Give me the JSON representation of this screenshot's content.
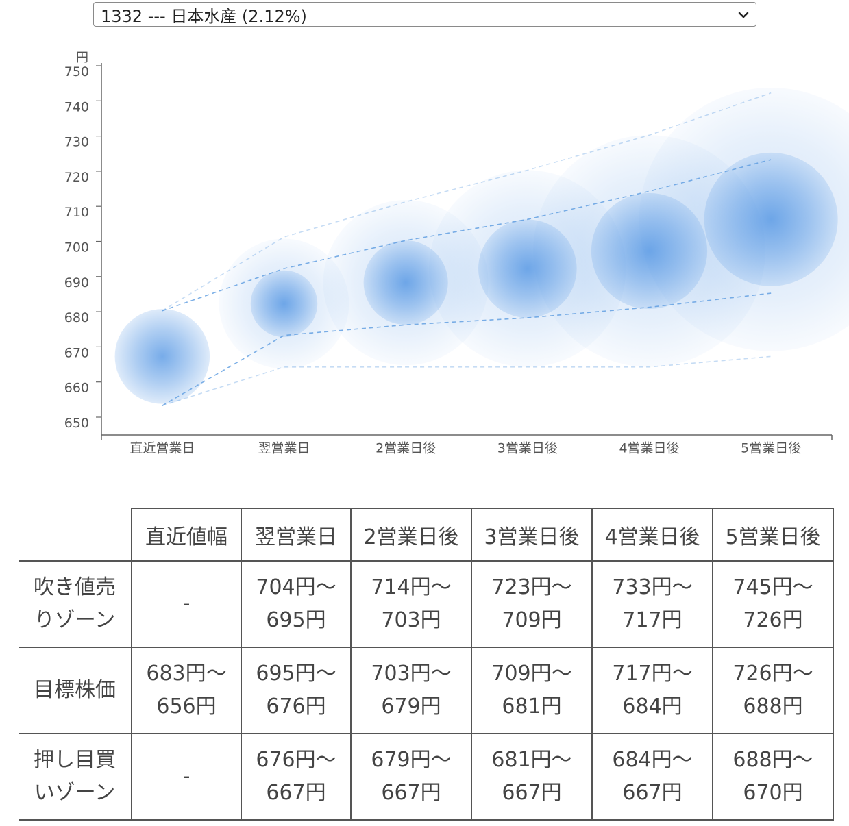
{
  "selector": {
    "selected": "1332 --- 日本水産 (2.12%)"
  },
  "chart_data": {
    "type": "bubble-range",
    "ylabel": "円",
    "ylim": [
      650,
      750
    ],
    "yticks": [
      650,
      660,
      670,
      680,
      690,
      700,
      710,
      720,
      730,
      740,
      750
    ],
    "categories": [
      "直近営業日",
      "翌営業日",
      "2営業日後",
      "3営業日後",
      "4営業日後",
      "5営業日後"
    ],
    "center": [
      670,
      685,
      691,
      695,
      700,
      709
    ],
    "outer_high": [
      683,
      704,
      714,
      723,
      733,
      745
    ],
    "inner_high": [
      683,
      695,
      703,
      709,
      717,
      726
    ],
    "inner_low": [
      656,
      676,
      679,
      681,
      684,
      688
    ],
    "outer_low": [
      656,
      667,
      667,
      667,
      667,
      670
    ],
    "colors": {
      "bubble": "#4a90e2",
      "line": "#5b9be0",
      "axis": "#666666"
    }
  },
  "table": {
    "headers": [
      "",
      "直近値幅",
      "翌営業日",
      "2営業日後",
      "3営業日後",
      "4営業日後",
      "5営業日後"
    ],
    "rows": [
      {
        "label": [
          "吹き値売",
          "りゾーン"
        ],
        "cells": [
          [
            "-"
          ],
          [
            "704円〜",
            "695円"
          ],
          [
            "714円〜",
            "703円"
          ],
          [
            "723円〜",
            "709円"
          ],
          [
            "733円〜",
            "717円"
          ],
          [
            "745円〜",
            "726円"
          ]
        ]
      },
      {
        "label": [
          "目標株価"
        ],
        "cells": [
          [
            "683円〜",
            "656円"
          ],
          [
            "695円〜",
            "676円"
          ],
          [
            "703円〜",
            "679円"
          ],
          [
            "709円〜",
            "681円"
          ],
          [
            "717円〜",
            "684円"
          ],
          [
            "726円〜",
            "688円"
          ]
        ]
      },
      {
        "label": [
          "押し目買",
          "いゾーン"
        ],
        "cells": [
          [
            "-"
          ],
          [
            "676円〜",
            "667円"
          ],
          [
            "679円〜",
            "667円"
          ],
          [
            "681円〜",
            "667円"
          ],
          [
            "684円〜",
            "667円"
          ],
          [
            "688円〜",
            "670円"
          ]
        ]
      }
    ]
  }
}
